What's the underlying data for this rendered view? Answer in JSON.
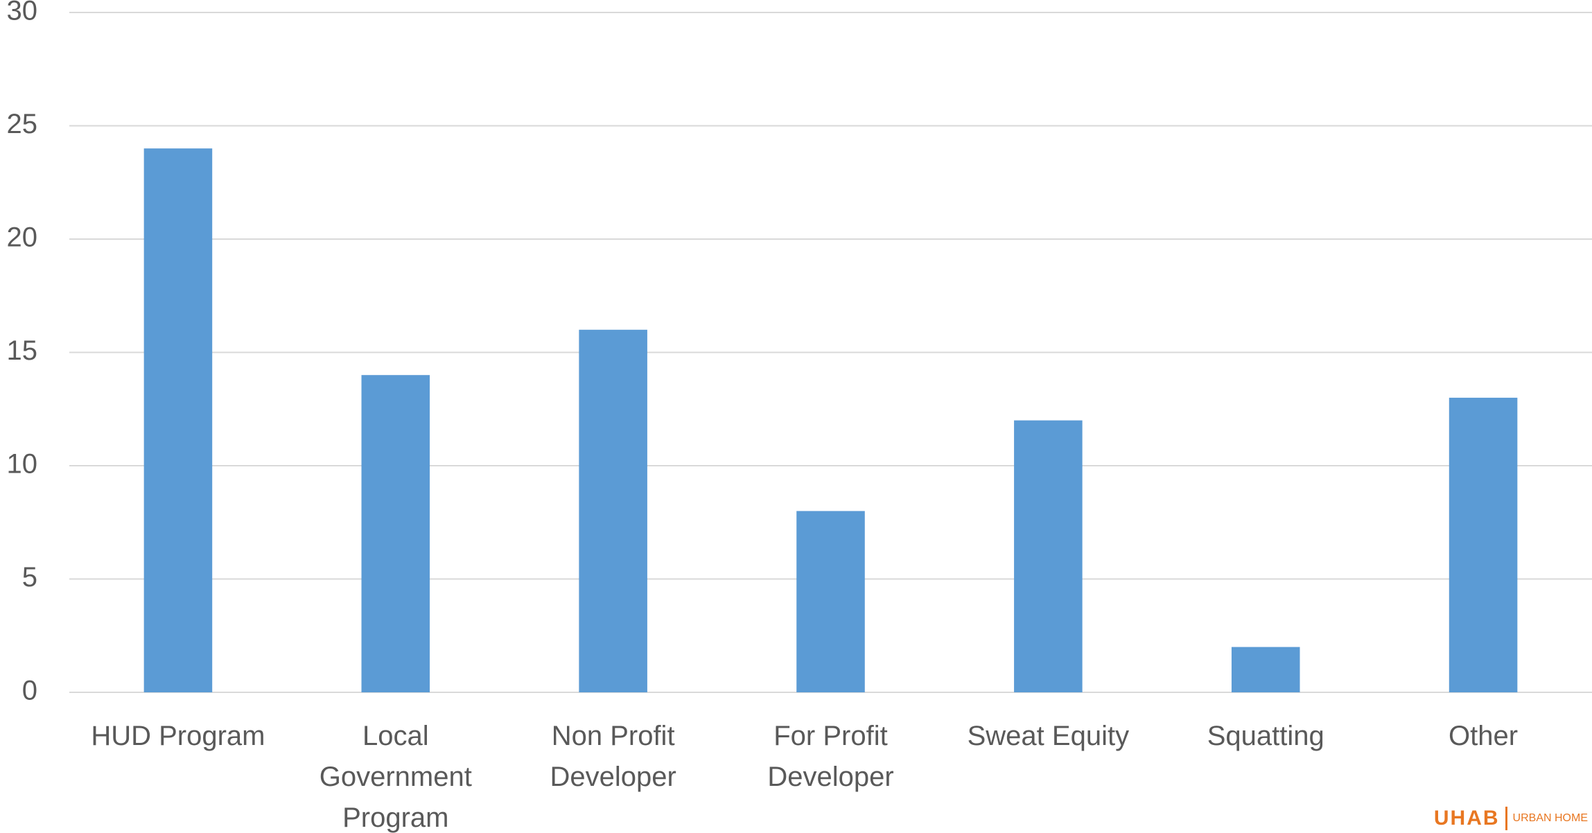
{
  "chart_data": {
    "type": "bar",
    "categories": [
      "HUD Program",
      "Local Government Program",
      "Non Profit Developer",
      "For Profit Developer",
      "Sweat Equity",
      "Squatting",
      "Other"
    ],
    "values": [
      24,
      14,
      16,
      8,
      12,
      2,
      13
    ],
    "color": "#5b9bd5",
    "ylim": [
      0,
      30
    ],
    "yticks": [
      0,
      5,
      10,
      15,
      20,
      25,
      30
    ],
    "grid": true
  },
  "logo": {
    "mark": "UHAB",
    "text": "URBAN HOME"
  }
}
